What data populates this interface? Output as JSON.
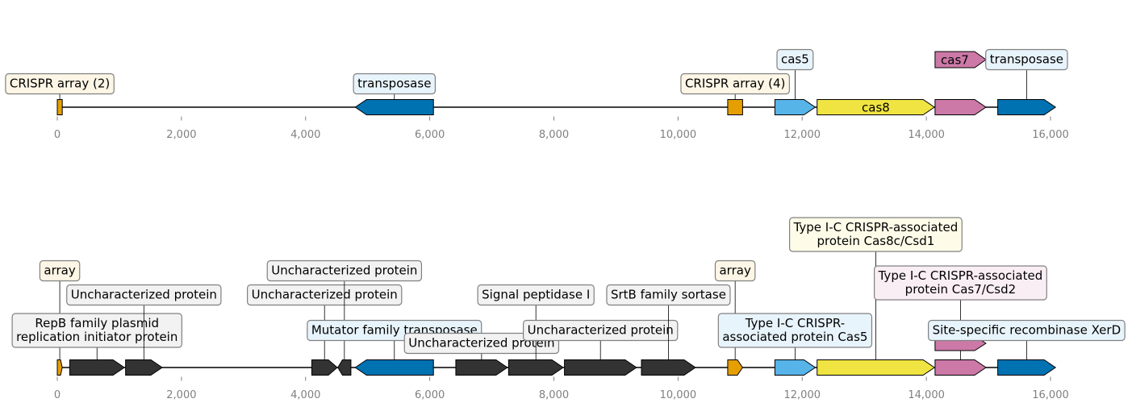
{
  "axis": {
    "min": 0,
    "max": 16000,
    "ticks": [
      0,
      2000,
      4000,
      6000,
      8000,
      10000,
      12000,
      14000,
      16000
    ],
    "tick_labels": [
      "0",
      "2,000",
      "4,000",
      "6,000",
      "8,000",
      "10,000",
      "12,000",
      "14,000",
      "16,000"
    ]
  },
  "colors": {
    "array": "#E69F00",
    "transposase": "#0072B2",
    "cas5": "#56B4E9",
    "cas8": "#F0E442",
    "cas7": "#CC79A7",
    "other": "#333333",
    "box_array": "#FDF6E6",
    "box_blue": "#E8F4FB",
    "box_yellow": "#FEFCE8",
    "box_pink": "#FAEEF5",
    "box_gray": "#F2F2F2"
  },
  "tracks": [
    {
      "features": [
        {
          "start": 0,
          "end": 80,
          "strand": 0,
          "color": "array",
          "label": "CRISPR array (2)",
          "label_mode": "box",
          "box": "box_array",
          "level": 0
        },
        {
          "start": 4800,
          "end": 6060,
          "strand": -1,
          "color": "transposase",
          "label": "transposase",
          "label_mode": "box",
          "box": "box_blue",
          "level": 0
        },
        {
          "start": 10800,
          "end": 11040,
          "strand": 0,
          "color": "array",
          "label": "CRISPR array (4)",
          "label_mode": "box",
          "box": "box_array",
          "level": 0
        },
        {
          "start": 11560,
          "end": 12210,
          "strand": 1,
          "color": "cas5",
          "label": "cas5",
          "label_mode": "box",
          "box": "box_blue",
          "level": 1
        },
        {
          "start": 12240,
          "end": 14130,
          "strand": 1,
          "color": "cas8",
          "label": "cas8",
          "label_mode": "inline",
          "level": 0
        },
        {
          "start": 14140,
          "end": 14960,
          "strand": 1,
          "color": "cas7",
          "label": "cas7",
          "label_mode": "inline",
          "level": 1
        },
        {
          "start": 15150,
          "end": 16080,
          "strand": 1,
          "color": "transposase",
          "label": "transposase",
          "label_mode": "box",
          "box": "box_blue",
          "level": 1
        }
      ]
    },
    {
      "features": [
        {
          "start": 0,
          "end": 80,
          "strand": 1,
          "color": "array",
          "label": "array",
          "label_mode": "box",
          "box": "box_array",
          "level": 2
        },
        {
          "start": 200,
          "end": 1080,
          "strand": 1,
          "color": "other",
          "label": "RepB family plasmid\nreplication initiator protein",
          "label_mode": "box",
          "box": "box_gray",
          "level": 0
        },
        {
          "start": 1100,
          "end": 1690,
          "strand": 1,
          "color": "other",
          "label": "Uncharacterized protein",
          "label_mode": "box",
          "box": "box_gray",
          "level": 1
        },
        {
          "start": 4100,
          "end": 4510,
          "strand": 1,
          "color": "other",
          "label": "Uncharacterized protein",
          "label_mode": "box",
          "box": "box_gray",
          "level": 1
        },
        {
          "start": 4520,
          "end": 4730,
          "strand": -1,
          "color": "other",
          "label": "Uncharacterized protein",
          "label_mode": "box",
          "box": "box_gray",
          "level": 2
        },
        {
          "start": 4800,
          "end": 6060,
          "strand": -1,
          "color": "transposase",
          "label": "Mutator family transposase",
          "label_mode": "box",
          "box": "box_blue",
          "level": 0
        },
        {
          "start": 6420,
          "end": 7250,
          "strand": 1,
          "color": "other",
          "label": "Uncharacterized protein",
          "label_mode": "box",
          "box": "box_gray",
          "level": -1
        },
        {
          "start": 7270,
          "end": 8150,
          "strand": 1,
          "color": "other",
          "label": "Signal peptidase I",
          "label_mode": "box",
          "box": "box_gray",
          "level": 1
        },
        {
          "start": 8170,
          "end": 9330,
          "strand": 1,
          "color": "other",
          "label": "Uncharacterized protein",
          "label_mode": "box",
          "box": "box_gray",
          "level": 0
        },
        {
          "start": 9410,
          "end": 10280,
          "strand": 1,
          "color": "other",
          "label": "SrtB family sortase",
          "label_mode": "box",
          "box": "box_gray",
          "level": 1
        },
        {
          "start": 10800,
          "end": 11040,
          "strand": 1,
          "color": "array",
          "label": "array",
          "label_mode": "box",
          "box": "box_array",
          "level": 2
        },
        {
          "start": 11560,
          "end": 12210,
          "strand": 1,
          "color": "cas5",
          "label": "Type I-C CRISPR-\nassociated protein Cas5",
          "label_mode": "box",
          "box": "box_blue",
          "level": 0
        },
        {
          "start": 12240,
          "end": 14130,
          "strand": 1,
          "color": "cas8",
          "label": "Type I-C CRISPR-associated\nprotein Cas8c/Csd1",
          "label_mode": "box",
          "box": "box_yellow",
          "level": 4
        },
        {
          "start": 14140,
          "end": 14960,
          "strand": 1,
          "color": "cas7",
          "label": "Type I-C CRISPR-associated\nprotein Cas7/Csd2",
          "label_mode": "box",
          "box": "box_pink",
          "level": 2.5,
          "offset": 1
        },
        {
          "start": 15150,
          "end": 16080,
          "strand": 1,
          "color": "transposase",
          "label": "Site-specific recombinase XerD",
          "label_mode": "box",
          "box": "box_blue",
          "level": 0
        }
      ]
    }
  ]
}
